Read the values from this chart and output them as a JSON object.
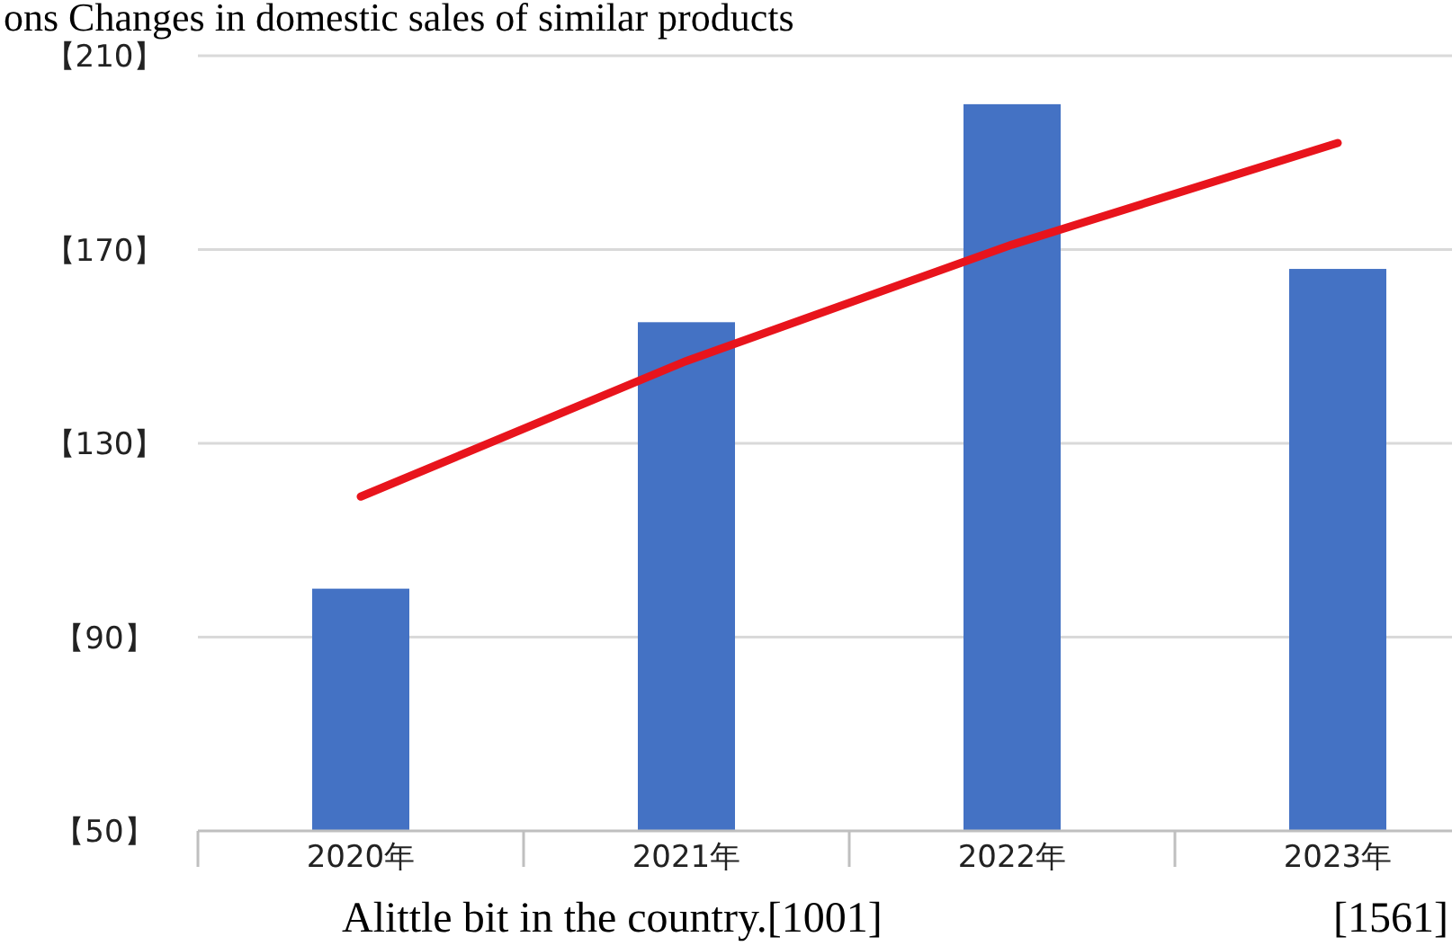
{
  "chart_data": {
    "type": "bar",
    "title": "ons Changes in domestic sales of similar products",
    "categories": [
      "2020年",
      "2021年",
      "2022年",
      "2023年"
    ],
    "series": [
      {
        "color": "#4472c4",
        "values": [
          100,
          155,
          200,
          166
        ]
      },
      {
        "type": "line",
        "color": "#e8141c",
        "values": [
          119,
          147,
          171,
          192
        ]
      }
    ],
    "ylim": [
      50,
      210
    ],
    "yticks": [
      {
        "value": 50,
        "label": "【50】"
      },
      {
        "value": 90,
        "label": "【90】"
      },
      {
        "value": 130,
        "label": "【130】"
      },
      {
        "value": 170,
        "label": "【170】"
      },
      {
        "value": 210,
        "label": "【210】"
      }
    ],
    "grid": "y",
    "annotations": [
      "Alittle bit in the country.[1001]",
      "[1561]"
    ]
  }
}
